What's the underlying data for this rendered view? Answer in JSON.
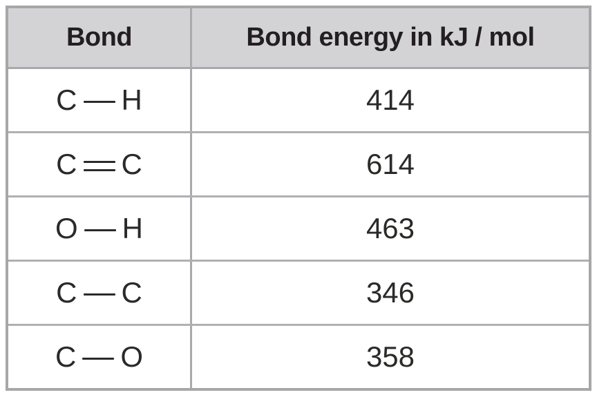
{
  "table": {
    "columns": [
      {
        "label": "Bond"
      },
      {
        "label": "Bond energy in kJ / mol"
      }
    ],
    "rows": [
      {
        "atom_left": "C",
        "atom_right": "H",
        "bond_type": "single",
        "bond_label": "C—H",
        "energy": "414"
      },
      {
        "atom_left": "C",
        "atom_right": "C",
        "bond_type": "double",
        "bond_label": "C=C",
        "energy": "614"
      },
      {
        "atom_left": "O",
        "atom_right": "H",
        "bond_type": "single",
        "bond_label": "O—H",
        "energy": "463"
      },
      {
        "atom_left": "C",
        "atom_right": "C",
        "bond_type": "single",
        "bond_label": "C—C",
        "energy": "346"
      },
      {
        "atom_left": "C",
        "atom_right": "O",
        "bond_type": "single",
        "bond_label": "C—O",
        "energy": "358"
      }
    ],
    "colors": {
      "header_background": "#d3d3d5",
      "outer_border": "#a7a7a9",
      "inner_border": "#b0b0b3",
      "text": "#231f20"
    }
  }
}
